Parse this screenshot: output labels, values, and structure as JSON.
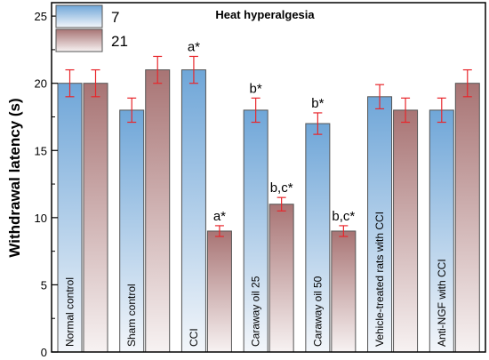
{
  "chart_data": {
    "type": "bar",
    "title": "Heat hyperalgesia",
    "xlabel": "",
    "ylabel": "Withdrawal latency (s)",
    "ylim": [
      0,
      26
    ],
    "yticks": [
      0,
      5,
      10,
      15,
      20,
      25
    ],
    "grid": false,
    "legend_position": "top-left",
    "categories": [
      "Normal control",
      "Sham control",
      "CCI",
      "Caraway oil 25",
      "Caraway oil 50",
      "Vehicle-treated rats with CCI",
      "Anti-NGF with CCI"
    ],
    "series": [
      {
        "name": "7",
        "color": "#7fb0dc",
        "values": [
          20,
          18,
          21,
          18,
          17,
          19,
          18
        ],
        "errors": [
          1,
          0.9,
          1,
          0.9,
          0.8,
          0.9,
          0.9
        ]
      },
      {
        "name": "21",
        "color": "#b88585",
        "values": [
          20,
          21,
          9,
          11,
          9,
          18,
          20
        ],
        "errors": [
          1,
          1,
          0.4,
          0.5,
          0.4,
          0.9,
          1
        ]
      }
    ],
    "annotations": [
      {
        "category": 2,
        "series": 0,
        "text": "a*"
      },
      {
        "category": 2,
        "series": 1,
        "text": "a*"
      },
      {
        "category": 3,
        "series": 0,
        "text": "b*"
      },
      {
        "category": 3,
        "series": 1,
        "text": "b,c*"
      },
      {
        "category": 4,
        "series": 0,
        "text": "b*"
      },
      {
        "category": 4,
        "series": 1,
        "text": "b,c*"
      }
    ]
  }
}
